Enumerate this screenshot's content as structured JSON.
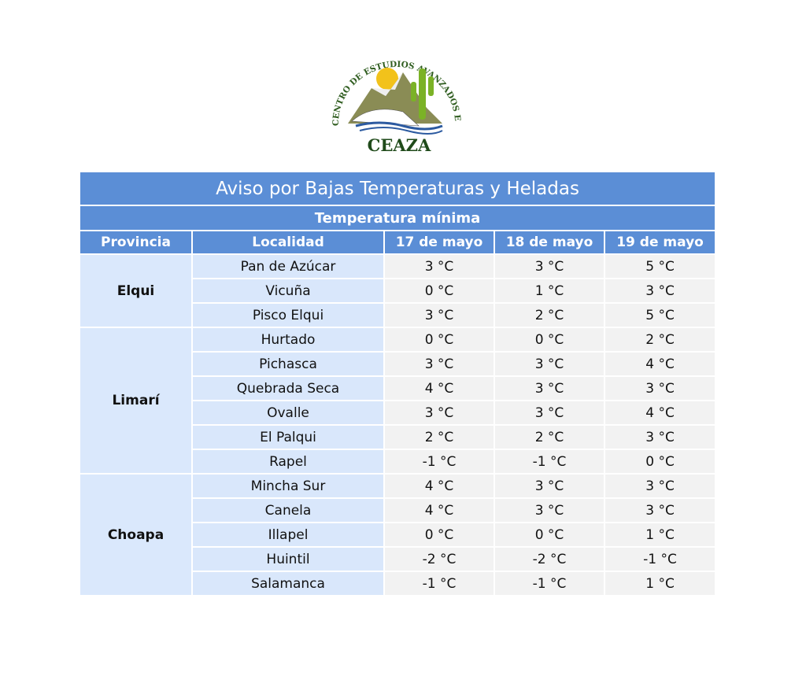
{
  "logo": {
    "arc_text": "CENTRO DE ESTUDIOS AVANZADOS EN ZONAS ÁRIDAS",
    "name": "CEAZA"
  },
  "table": {
    "title": "Aviso por Bajas Temperaturas y Heladas",
    "subtitle": "Temperatura mínima",
    "headers": [
      "Provincia",
      "Localidad",
      "17 de mayo",
      "18 de mayo",
      "19 de mayo"
    ],
    "groups": [
      {
        "province": "Elqui",
        "rows": [
          [
            "Pan de Azúcar",
            "3 °C",
            "3 °C",
            "5 °C"
          ],
          [
            "Vicuña",
            "0 °C",
            "1 °C",
            "3 °C"
          ],
          [
            "Pisco Elqui",
            "3 °C",
            "2 °C",
            "5 °C"
          ]
        ]
      },
      {
        "province": "Limarí",
        "rows": [
          [
            "Hurtado",
            "0 °C",
            "0 °C",
            "2 °C"
          ],
          [
            "Pichasca",
            "3 °C",
            "3 °C",
            "4 °C"
          ],
          [
            "Quebrada Seca",
            "4 °C",
            "3 °C",
            "3 °C"
          ],
          [
            "Ovalle",
            "3 °C",
            "3 °C",
            "4 °C"
          ],
          [
            "El Palqui",
            "2 °C",
            "2 °C",
            "3 °C"
          ],
          [
            "Rapel",
            "-1 °C",
            "-1 °C",
            "0 °C"
          ]
        ]
      },
      {
        "province": "Choapa",
        "rows": [
          [
            "Mincha Sur",
            "4 °C",
            "3 °C",
            "3 °C"
          ],
          [
            "Canela",
            "4 °C",
            "3 °C",
            "3 °C"
          ],
          [
            "Illapel",
            "0 °C",
            "0 °C",
            "1 °C"
          ],
          [
            "Huintil",
            "-2 °C",
            "-2 °C",
            "-1 °C"
          ],
          [
            "Salamanca",
            "-1 °C",
            "-1 °C",
            "1 °C"
          ]
        ]
      }
    ]
  }
}
